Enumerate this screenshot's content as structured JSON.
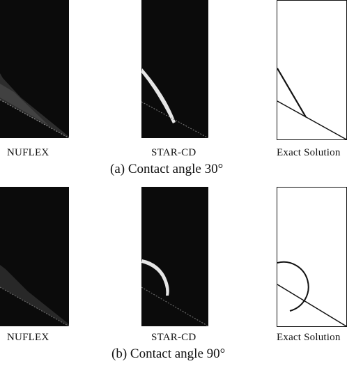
{
  "rows": [
    {
      "caption": "(a) Contact angle 30°",
      "contact_angle_deg": 30,
      "panels": [
        {
          "label": "NUFLEX"
        },
        {
          "label": "STAR-CD"
        },
        {
          "label": "Exact Solution"
        }
      ]
    },
    {
      "caption": "(b) Contact angle 90°",
      "contact_angle_deg": 90,
      "panels": [
        {
          "label": "NUFLEX"
        },
        {
          "label": "STAR-CD"
        },
        {
          "label": "Exact Solution"
        }
      ]
    }
  ],
  "colors": {
    "simulation_background": "#0b0b0b",
    "interface_highlight": "#e6e6e6",
    "exact_solution_line": "#111111"
  }
}
